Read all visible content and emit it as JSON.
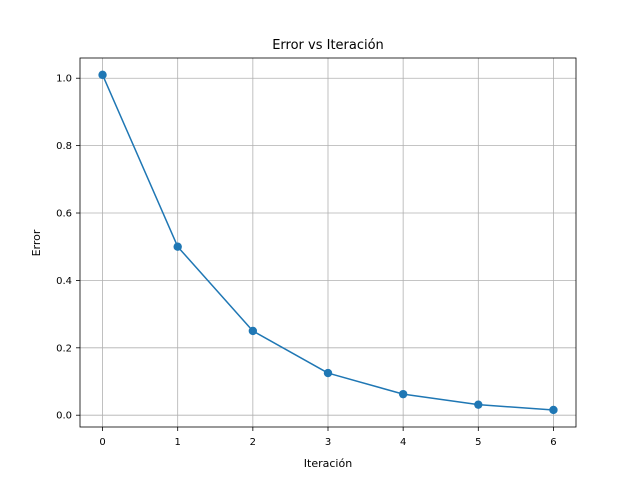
{
  "chart_data": {
    "type": "line",
    "title": "Error vs Iteración",
    "xlabel": "Iteración",
    "ylabel": "Error",
    "x": [
      0,
      1,
      2,
      3,
      4,
      5,
      6
    ],
    "series": [
      {
        "values": [
          1.01,
          0.5,
          0.25,
          0.125,
          0.0625,
          0.03125,
          0.015625
        ],
        "color": "#1f77b4",
        "marker": "circle"
      }
    ],
    "xlim": [
      -0.3,
      6.3
    ],
    "ylim": [
      -0.035,
      1.06
    ],
    "xticks": [
      0,
      1,
      2,
      3,
      4,
      5,
      6
    ],
    "xtick_labels": [
      "0",
      "1",
      "2",
      "3",
      "4",
      "5",
      "6"
    ],
    "yticks": [
      0.0,
      0.2,
      0.4,
      0.6,
      0.8,
      1.0
    ],
    "ytick_labels": [
      "0.0",
      "0.2",
      "0.4",
      "0.6",
      "0.8",
      "1.0"
    ],
    "grid": true,
    "colors": {
      "grid": "#b0b0b0",
      "axis": "#000000",
      "line": "#1f77b4"
    }
  }
}
